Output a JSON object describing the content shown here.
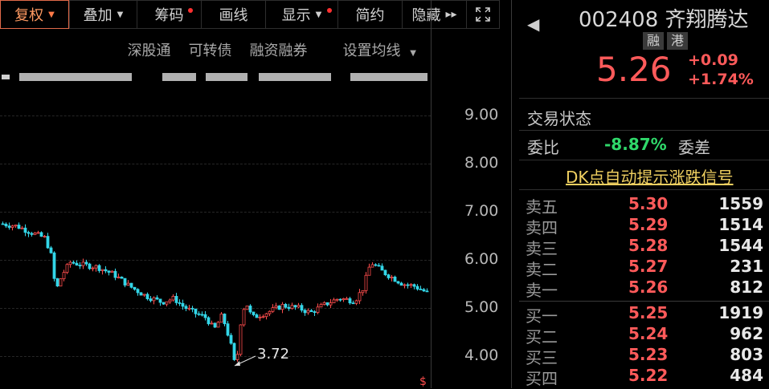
{
  "toolbar": {
    "fuquan": "复权",
    "diejia": "叠加",
    "chouma": "筹码",
    "huaxian": "画线",
    "xianshi": "显示",
    "jianyue": "简约",
    "yincang": "隐藏"
  },
  "subbar": {
    "shengutong": "深股通",
    "kezhuanzhai": "可转债",
    "rongzi": "融资融券",
    "junxian": "设置均线"
  },
  "stock": {
    "code_name": "002408 齐翔腾达",
    "tag1": "融",
    "tag2": "港",
    "price": "5.26",
    "change": "+0.09",
    "change_pct": "+1.74%"
  },
  "status": {
    "trade_status_label": "交易状态",
    "weibi_label": "委比",
    "weibi_value": "-8.87%",
    "weicha_label": "委差",
    "dk_signal": "DK点自动提示涨跌信号"
  },
  "order_book": {
    "asks": [
      {
        "name": "卖五",
        "price": "5.30",
        "vol": "1559"
      },
      {
        "name": "卖四",
        "price": "5.29",
        "vol": "1514"
      },
      {
        "name": "卖三",
        "price": "5.28",
        "vol": "1544"
      },
      {
        "name": "卖二",
        "price": "5.27",
        "vol": "231"
      },
      {
        "name": "卖一",
        "price": "5.26",
        "vol": "812"
      }
    ],
    "bids": [
      {
        "name": "买一",
        "price": "5.25",
        "vol": "1919"
      },
      {
        "name": "买二",
        "price": "5.24",
        "vol": "962"
      },
      {
        "name": "买三",
        "price": "5.23",
        "vol": "803"
      },
      {
        "name": "买四",
        "price": "5.22",
        "vol": "484"
      }
    ]
  },
  "chart": {
    "y_ticks": [
      "9.00",
      "8.00",
      "7.00",
      "6.00",
      "5.00",
      "4.00"
    ],
    "low_label": "3.72",
    "ylim": [
      3.7,
      9.2
    ]
  },
  "colors": {
    "up": "#ff4d4d",
    "down": "#33d6e8",
    "accent": "#e06a4a"
  },
  "icons": {
    "caret": "▾",
    "double_right": "»",
    "expand": "⤢",
    "left_arrow": "◀"
  }
}
